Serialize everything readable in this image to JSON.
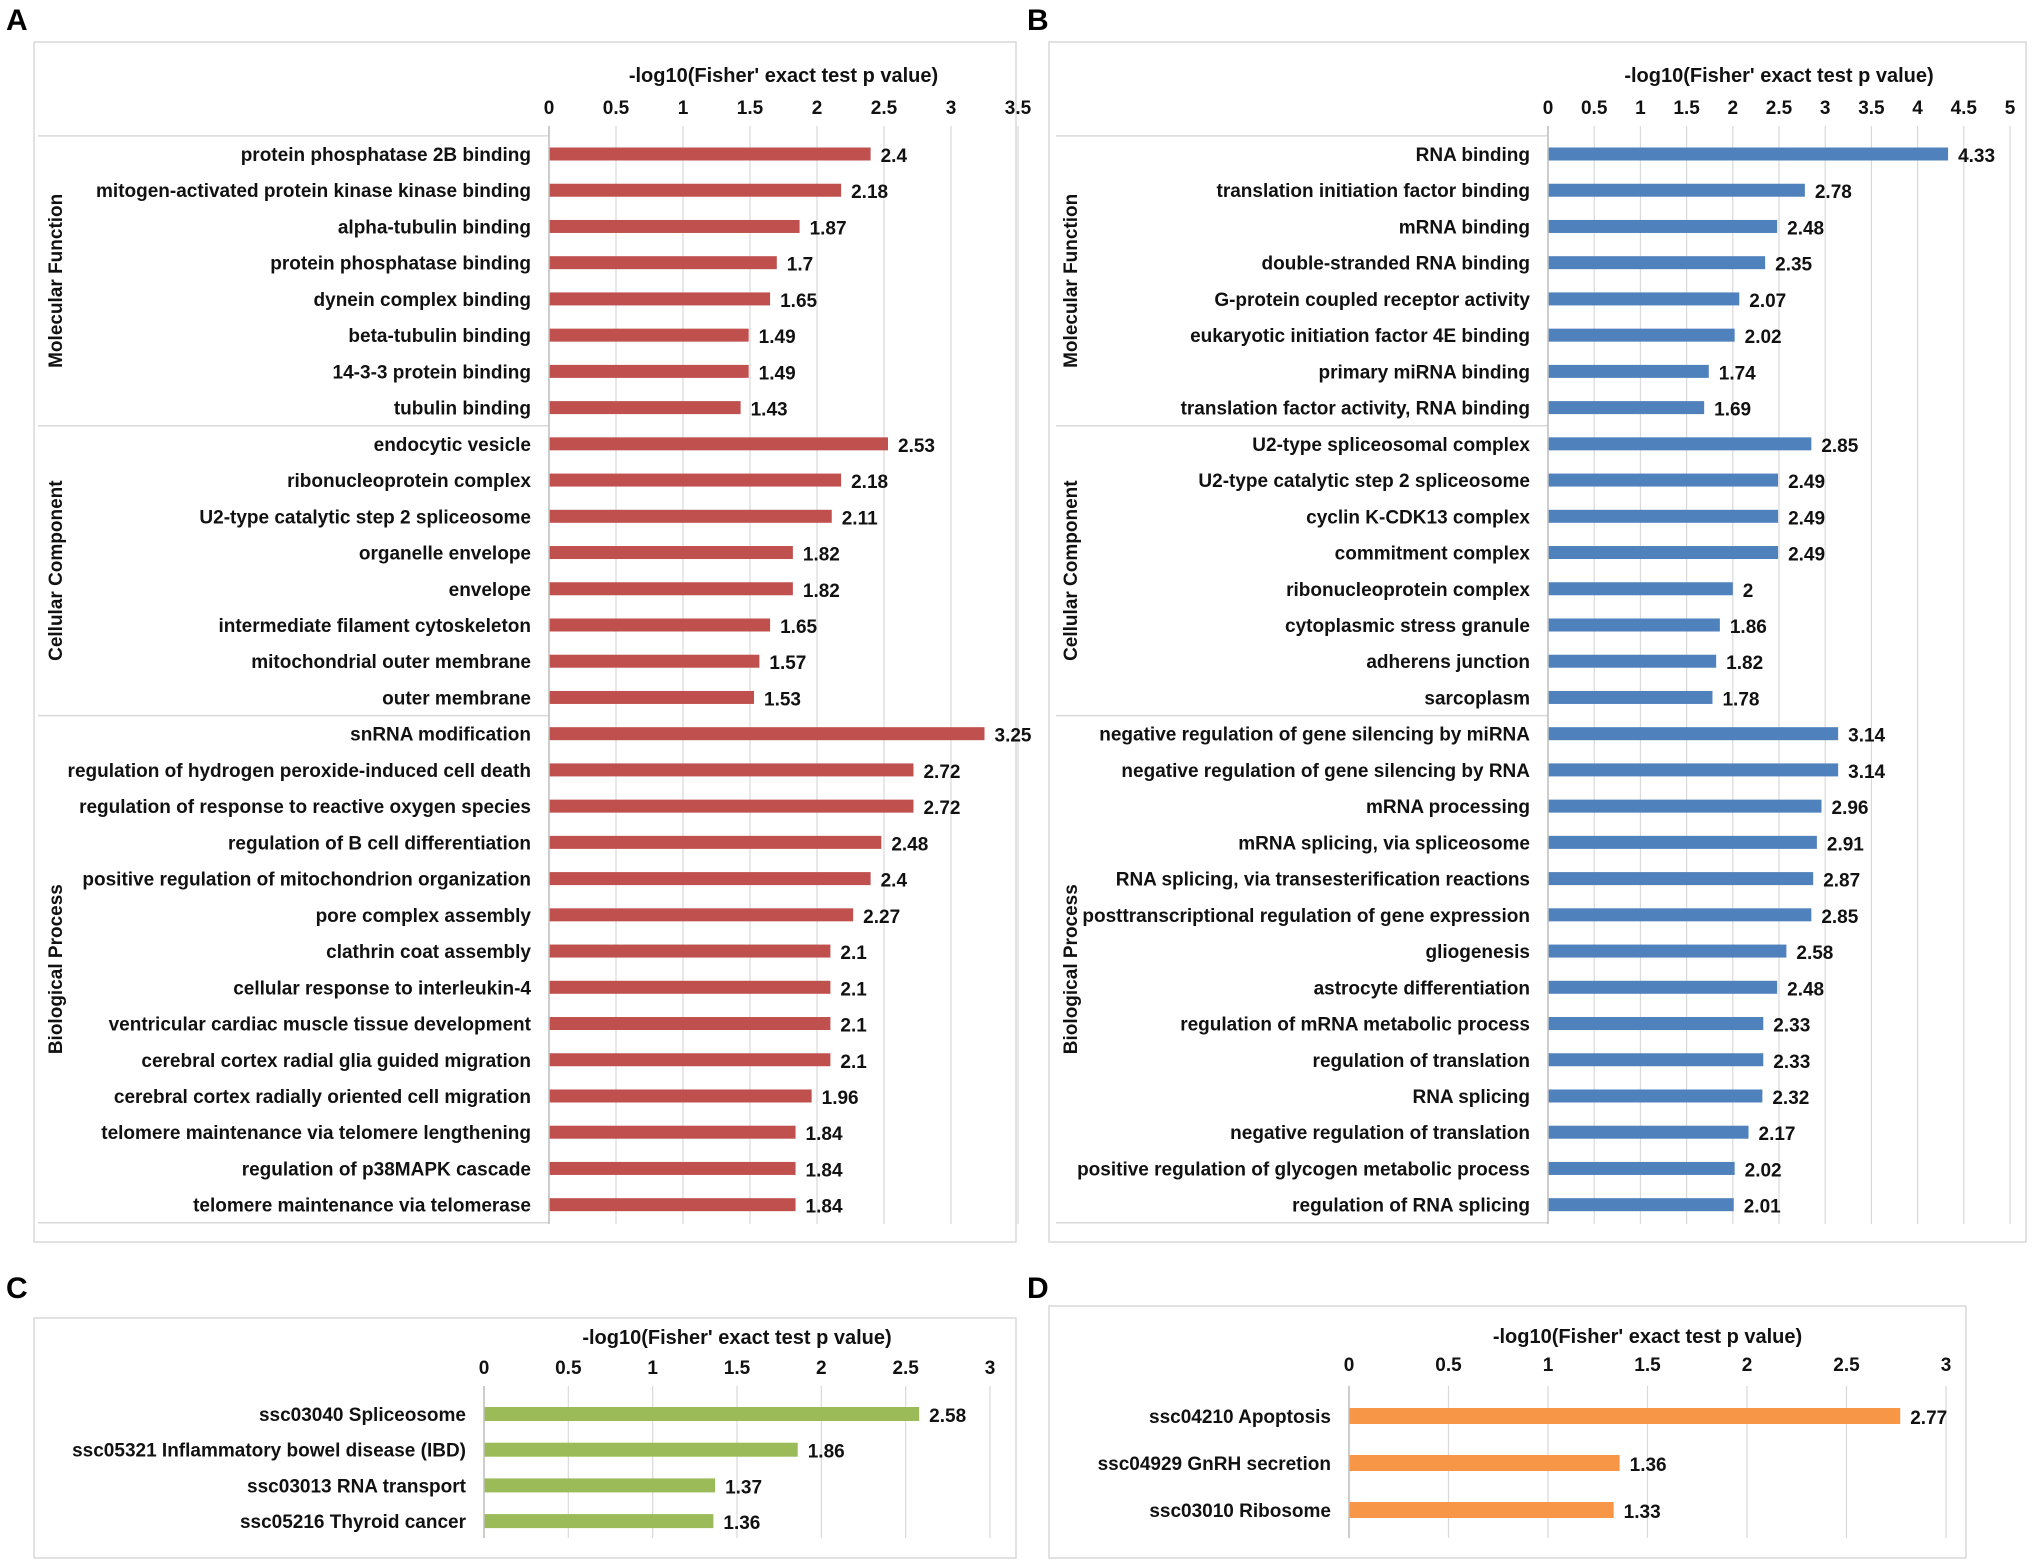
{
  "chart_data": [
    {
      "panel": "A",
      "type": "bar",
      "orientation": "horizontal",
      "title": "-log10(Fisher' exact test p value)",
      "xlim": [
        0,
        3.5
      ],
      "xticks": [
        "0",
        "0.5",
        "1",
        "1.5",
        "2",
        "2.5",
        "3",
        "3.5"
      ],
      "color": "#c0504d",
      "groups": [
        {
          "name": "Molecular Function",
          "categories": [
            "protein phosphatase 2B binding",
            "mitogen-activated protein kinase kinase binding",
            "alpha-tubulin binding",
            "protein phosphatase binding",
            "dynein complex binding",
            "beta-tubulin binding",
            "14-3-3 protein binding",
            "tubulin binding"
          ],
          "values": [
            2.4,
            2.18,
            1.87,
            1.7,
            1.65,
            1.49,
            1.49,
            1.43
          ]
        },
        {
          "name": "Cellular Component",
          "categories": [
            "endocytic vesicle",
            "ribonucleoprotein complex",
            "U2-type catalytic step 2 spliceosome",
            "organelle envelope",
            "envelope",
            "intermediate filament cytoskeleton",
            "mitochondrial outer membrane",
            "outer membrane"
          ],
          "values": [
            2.53,
            2.18,
            2.11,
            1.82,
            1.82,
            1.65,
            1.57,
            1.53
          ]
        },
        {
          "name": "Biological Process",
          "categories": [
            "snRNA modification",
            "regulation of hydrogen peroxide-induced cell death",
            "regulation of response to reactive oxygen species",
            "regulation of B cell differentiation",
            "positive regulation of mitochondrion organization",
            "pore complex assembly",
            "clathrin coat assembly",
            "cellular response to interleukin-4",
            "ventricular cardiac muscle tissue development",
            "cerebral cortex radial glia guided migration",
            "cerebral cortex radially oriented cell migration",
            "telomere maintenance via telomere lengthening",
            "regulation of p38MAPK cascade",
            "telomere maintenance via telomerase"
          ],
          "values": [
            3.25,
            2.72,
            2.72,
            2.48,
            2.4,
            2.27,
            2.1,
            2.1,
            2.1,
            2.1,
            1.96,
            1.84,
            1.84,
            1.84
          ]
        }
      ]
    },
    {
      "panel": "B",
      "type": "bar",
      "orientation": "horizontal",
      "title": "-log10(Fisher' exact test p value)",
      "xlim": [
        0,
        5
      ],
      "xticks": [
        "0",
        "0.5",
        "1",
        "1.5",
        "2",
        "2.5",
        "3",
        "3.5",
        "4",
        "4.5",
        "5"
      ],
      "color": "#4f81bd",
      "groups": [
        {
          "name": "Molecular Function",
          "categories": [
            "RNA binding",
            "translation initiation factor binding",
            "mRNA binding",
            "double-stranded RNA binding",
            "G-protein coupled receptor activity",
            "eukaryotic initiation factor 4E binding",
            "primary miRNA binding",
            "translation factor activity, RNA binding"
          ],
          "values": [
            4.33,
            2.78,
            2.48,
            2.35,
            2.07,
            2.02,
            1.74,
            1.69
          ]
        },
        {
          "name": "Cellular Component",
          "categories": [
            "U2-type spliceosomal complex",
            "U2-type catalytic step 2 spliceosome",
            "cyclin K-CDK13 complex",
            "commitment complex",
            "ribonucleoprotein complex",
            "cytoplasmic stress granule",
            "adherens junction",
            "sarcoplasm"
          ],
          "values": [
            2.85,
            2.49,
            2.49,
            2.49,
            2,
            1.86,
            1.82,
            1.78
          ]
        },
        {
          "name": "Biological Process",
          "categories": [
            "negative regulation of gene silencing by miRNA",
            "negative regulation of gene silencing by RNA",
            "mRNA processing",
            "mRNA splicing, via spliceosome",
            "RNA splicing, via transesterification reactions",
            "posttranscriptional regulation of gene expression",
            "gliogenesis",
            "astrocyte differentiation",
            "regulation of mRNA metabolic process",
            "regulation of translation",
            "RNA splicing",
            "negative regulation of translation",
            "positive regulation of glycogen metabolic process",
            "regulation of RNA splicing"
          ],
          "values": [
            3.14,
            3.14,
            2.96,
            2.91,
            2.87,
            2.85,
            2.58,
            2.48,
            2.33,
            2.33,
            2.32,
            2.17,
            2.02,
            2.01
          ]
        }
      ]
    },
    {
      "panel": "C",
      "type": "bar",
      "orientation": "horizontal",
      "title": "-log10(Fisher' exact test p value)",
      "xlim": [
        0,
        3
      ],
      "xticks": [
        "0",
        "0.5",
        "1",
        "1.5",
        "2",
        "2.5",
        "3"
      ],
      "color": "#9bbb59",
      "groups": [
        {
          "name": "",
          "categories": [
            "ssc03040 Spliceosome",
            "ssc05321 Inflammatory bowel disease (IBD)",
            "ssc03013 RNA transport",
            "ssc05216 Thyroid cancer"
          ],
          "values": [
            2.58,
            1.86,
            1.37,
            1.36
          ]
        }
      ]
    },
    {
      "panel": "D",
      "type": "bar",
      "orientation": "horizontal",
      "title": "-log10(Fisher' exact test p value)",
      "xlim": [
        0,
        3
      ],
      "xticks": [
        "0",
        "0.5",
        "1",
        "1.5",
        "2",
        "2.5",
        "3"
      ],
      "color": "#f79646",
      "groups": [
        {
          "name": "",
          "categories": [
            "ssc04210 Apoptosis",
            "ssc04929 GnRH secretion",
            "ssc03010 Ribosome"
          ],
          "values": [
            2.77,
            1.36,
            1.33
          ]
        }
      ]
    }
  ]
}
